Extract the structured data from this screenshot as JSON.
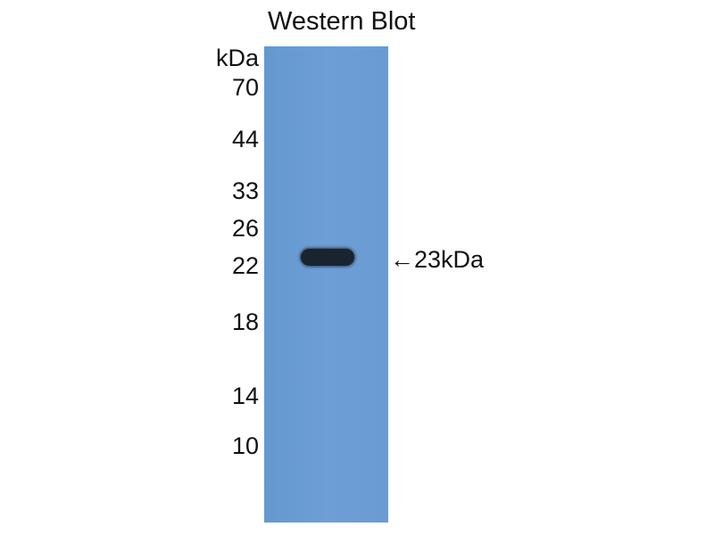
{
  "title": "Western Blot",
  "unit_label": "kDa",
  "markers": [
    "70",
    "44",
    "33",
    "26",
    "22",
    "18",
    "14",
    "10"
  ],
  "band_annotation": "←23kDa",
  "colors": {
    "membrane": "#6c9fd6",
    "band": "#1a2430",
    "background": "#ffffff"
  }
}
